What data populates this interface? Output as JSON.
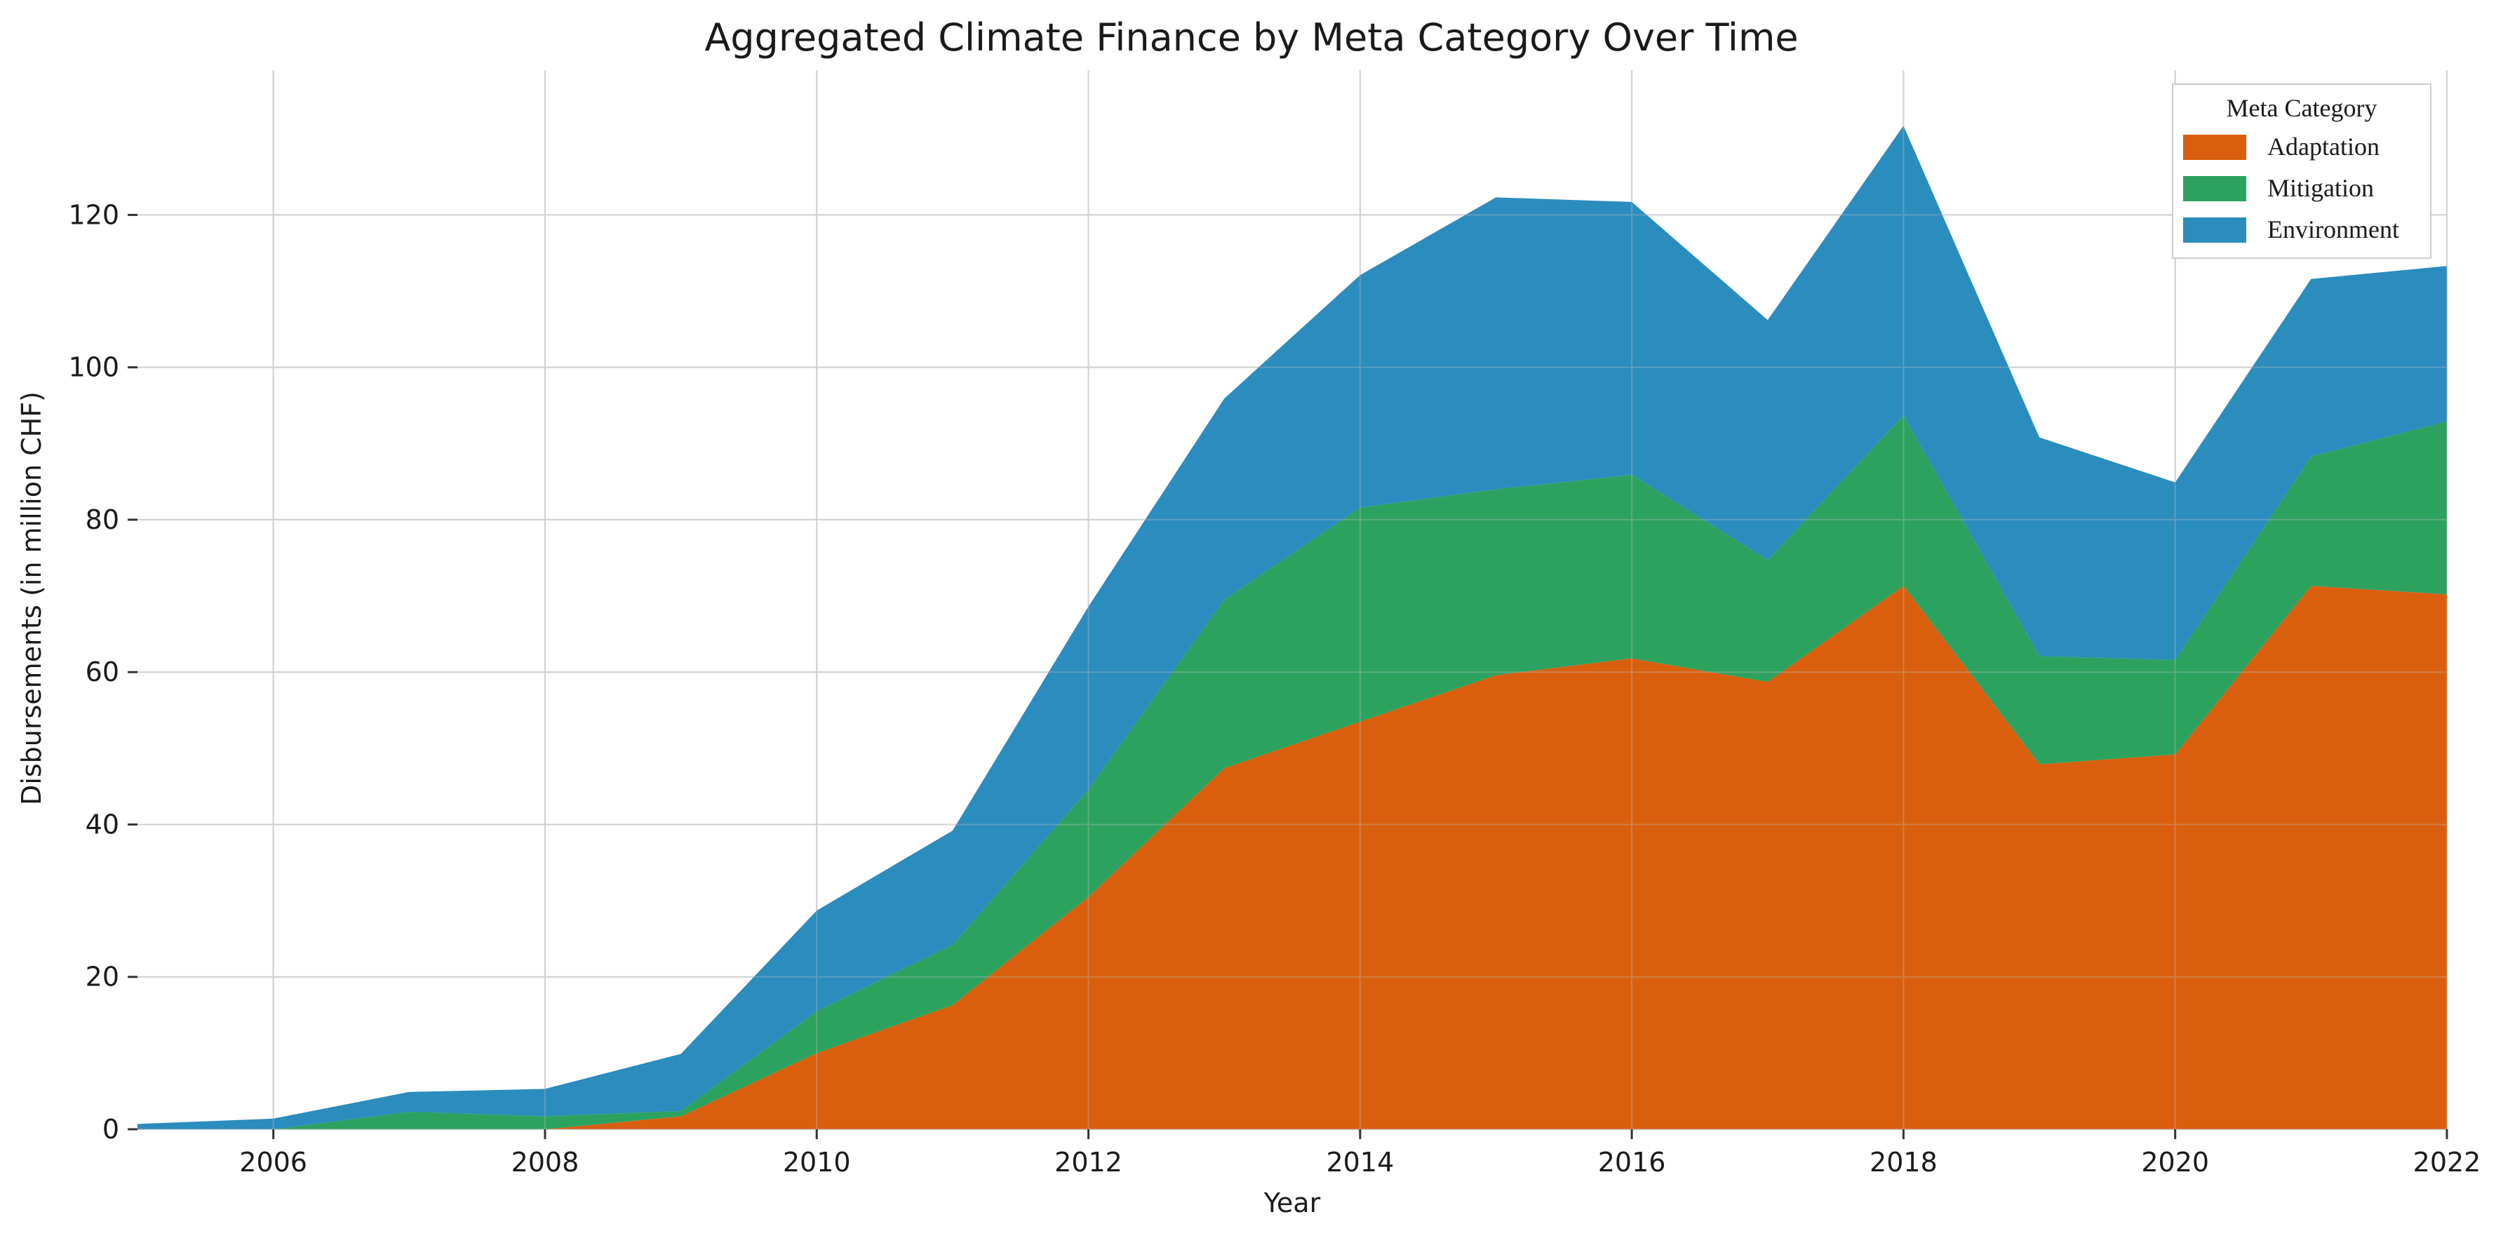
{
  "chart_data": {
    "type": "area",
    "stacked": true,
    "title": "Aggregated Climate Finance by Meta Category Over Time",
    "xlabel": "Year",
    "ylabel": "Disbursements (in million CHF)",
    "xlim": [
      2005,
      2022
    ],
    "ylim": [
      0,
      139
    ],
    "xticks": [
      2006,
      2008,
      2010,
      2012,
      2014,
      2016,
      2018,
      2020,
      2022
    ],
    "yticks": [
      0,
      20,
      40,
      60,
      80,
      100,
      120
    ],
    "grid": true,
    "legend": {
      "title": "Meta Category",
      "position": "top-right"
    },
    "x": [
      2005,
      2006,
      2007,
      2008,
      2009,
      2010,
      2011,
      2012,
      2013,
      2014,
      2015,
      2016,
      2017,
      2018,
      2019,
      2020,
      2021,
      2022
    ],
    "series": [
      {
        "name": "Adaptation",
        "color": "#d95f0e",
        "values": [
          0.0,
          0.0,
          0.0,
          0.0,
          1.7,
          10.0,
          16.3,
          30.5,
          47.4,
          53.5,
          59.6,
          61.8,
          58.7,
          71.3,
          47.9,
          49.2,
          71.3,
          70.2
        ]
      },
      {
        "name": "Mitigation",
        "color": "#2ca25f",
        "values": [
          0.0,
          0.0,
          2.3,
          1.7,
          0.7,
          5.5,
          7.9,
          14.1,
          22.1,
          28.1,
          24.4,
          24.1,
          16.0,
          22.4,
          14.2,
          12.4,
          17.0,
          22.7
        ]
      },
      {
        "name": "Environment",
        "color": "#2b8cbe",
        "values": [
          0.7,
          1.4,
          2.6,
          3.6,
          7.5,
          13.2,
          15.0,
          24.0,
          26.4,
          30.5,
          38.3,
          35.8,
          31.5,
          38.0,
          28.7,
          23.3,
          23.3,
          20.4
        ]
      }
    ]
  }
}
